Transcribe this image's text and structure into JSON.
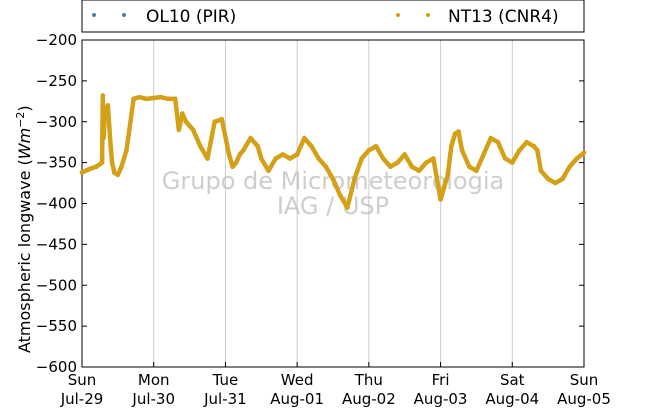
{
  "chart_data": {
    "type": "scatter",
    "ylabel_main": "Atmospheric longwave (",
    "ylabel_unit": "Wm",
    "ylabel_exp": "−2",
    "ylabel_close": ")",
    "ylim": [
      -600,
      -200
    ],
    "yticks": [
      "−200",
      "−250",
      "−300",
      "−350",
      "−400",
      "−450",
      "−500",
      "−550",
      "−600"
    ],
    "ytick_values": [
      -200,
      -250,
      -300,
      -350,
      -400,
      -450,
      -500,
      -550,
      -600
    ],
    "xlim": [
      "2012-07-29 00:00",
      "2012-08-05 00:00"
    ],
    "xticks": [
      {
        "day": "Sun",
        "date": "Jul-29"
      },
      {
        "day": "Mon",
        "date": "Jul-30"
      },
      {
        "day": "Tue",
        "date": "Jul-31"
      },
      {
        "day": "Wed",
        "date": "Aug-01"
      },
      {
        "day": "Thu",
        "date": "Aug-02"
      },
      {
        "day": "Fri",
        "date": "Aug-03"
      },
      {
        "day": "Sat",
        "date": "Aug-04"
      },
      {
        "day": "Sun",
        "date": "Aug-05"
      }
    ],
    "grid": "vertical",
    "legend_placement": "top",
    "series": [
      {
        "name": "OL10 (PIR)",
        "color": "#4c7fa8",
        "points": []
      },
      {
        "name": "NT13 (CNR4)",
        "color": "#d4a017",
        "points": [
          [
            0.0,
            -362
          ],
          [
            0.1,
            -358
          ],
          [
            0.2,
            -355
          ],
          [
            0.28,
            -350
          ],
          [
            0.3,
            -320
          ],
          [
            0.29,
            -268
          ],
          [
            0.32,
            -290
          ],
          [
            0.36,
            -280
          ],
          [
            0.38,
            -305
          ],
          [
            0.4,
            -330
          ],
          [
            0.42,
            -350
          ],
          [
            0.45,
            -362
          ],
          [
            0.5,
            -365
          ],
          [
            0.55,
            -355
          ],
          [
            0.62,
            -335
          ],
          [
            0.72,
            -272
          ],
          [
            0.8,
            -270
          ],
          [
            0.9,
            -272
          ],
          [
            1.0,
            -271
          ],
          [
            1.1,
            -270
          ],
          [
            1.2,
            -272
          ],
          [
            1.3,
            -272
          ],
          [
            1.35,
            -310
          ],
          [
            1.4,
            -290
          ],
          [
            1.45,
            -300
          ],
          [
            1.5,
            -305
          ],
          [
            1.55,
            -310
          ],
          [
            1.65,
            -330
          ],
          [
            1.75,
            -345
          ],
          [
            1.85,
            -300
          ],
          [
            1.95,
            -297
          ],
          [
            2.05,
            -340
          ],
          [
            2.1,
            -355
          ],
          [
            2.15,
            -350
          ],
          [
            2.2,
            -340
          ],
          [
            2.25,
            -335
          ],
          [
            2.35,
            -320
          ],
          [
            2.45,
            -330
          ],
          [
            2.5,
            -345
          ],
          [
            2.6,
            -360
          ],
          [
            2.7,
            -345
          ],
          [
            2.8,
            -340
          ],
          [
            2.9,
            -345
          ],
          [
            3.0,
            -340
          ],
          [
            3.1,
            -320
          ],
          [
            3.2,
            -330
          ],
          [
            3.3,
            -345
          ],
          [
            3.4,
            -355
          ],
          [
            3.5,
            -370
          ],
          [
            3.6,
            -390
          ],
          [
            3.7,
            -405
          ],
          [
            3.8,
            -370
          ],
          [
            3.9,
            -345
          ],
          [
            4.0,
            -335
          ],
          [
            4.1,
            -330
          ],
          [
            4.2,
            -345
          ],
          [
            4.3,
            -355
          ],
          [
            4.4,
            -350
          ],
          [
            4.5,
            -340
          ],
          [
            4.6,
            -355
          ],
          [
            4.7,
            -360
          ],
          [
            4.8,
            -350
          ],
          [
            4.9,
            -345
          ],
          [
            5.0,
            -395
          ],
          [
            5.05,
            -380
          ],
          [
            5.1,
            -365
          ],
          [
            5.15,
            -330
          ],
          [
            5.2,
            -315
          ],
          [
            5.25,
            -312
          ],
          [
            5.3,
            -335
          ],
          [
            5.4,
            -355
          ],
          [
            5.5,
            -360
          ],
          [
            5.6,
            -340
          ],
          [
            5.7,
            -320
          ],
          [
            5.8,
            -325
          ],
          [
            5.9,
            -345
          ],
          [
            6.0,
            -350
          ],
          [
            6.1,
            -335
          ],
          [
            6.2,
            -325
          ],
          [
            6.3,
            -330
          ],
          [
            6.35,
            -335
          ],
          [
            6.4,
            -360
          ],
          [
            6.5,
            -370
          ],
          [
            6.6,
            -375
          ],
          [
            6.7,
            -370
          ],
          [
            6.8,
            -355
          ],
          [
            6.9,
            -345
          ],
          [
            7.0,
            -338
          ]
        ]
      }
    ]
  },
  "legend": {
    "items": [
      "OL10 (PIR)",
      "NT13 (CNR4)"
    ]
  },
  "watermark": {
    "line1": "Grupo de Micrometeorologia",
    "line2": "IAG / USP"
  }
}
